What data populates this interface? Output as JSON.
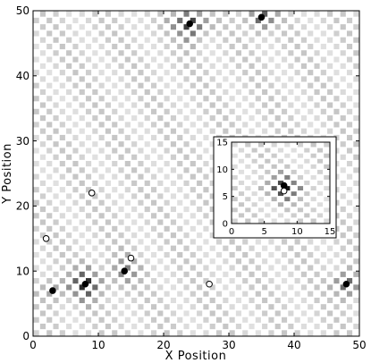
{
  "chart_data": [
    {
      "type": "heatmap",
      "title": "",
      "xlabel": "X Position",
      "ylabel": "Y Position",
      "xlim": [
        0,
        50
      ],
      "ylim": [
        0,
        50
      ],
      "xticks": [
        "0",
        "10",
        "20",
        "30",
        "40",
        "50"
      ],
      "yticks": [
        "0",
        "10",
        "20",
        "30",
        "40",
        "50"
      ],
      "colormap": "grayscale, darker = higher intensity",
      "grid": false,
      "description_level": "checkerboard intensity field with dark clusters around source points",
      "filled_points": [
        {
          "x": 8,
          "y": 8
        },
        {
          "x": 24,
          "y": 48
        },
        {
          "x": 35,
          "y": 49
        },
        {
          "x": 48,
          "y": 8
        },
        {
          "x": 14,
          "y": 10
        },
        {
          "x": 3,
          "y": 7
        }
      ],
      "open_points": [
        {
          "x": 9,
          "y": 22
        },
        {
          "x": 2,
          "y": 15
        },
        {
          "x": 15,
          "y": 12
        },
        {
          "x": 27,
          "y": 8
        }
      ],
      "hotspots": [
        {
          "x": 8,
          "y": 8,
          "strength": 1.0,
          "radius": 6
        },
        {
          "x": 24,
          "y": 48,
          "strength": 1.0,
          "radius": 6
        },
        {
          "x": 35,
          "y": 49,
          "strength": 0.8,
          "radius": 5
        },
        {
          "x": 48,
          "y": 8,
          "strength": 0.8,
          "radius": 5
        },
        {
          "x": 14,
          "y": 10,
          "strength": 0.45,
          "radius": 6
        },
        {
          "x": 3,
          "y": 7,
          "strength": 0.35,
          "radius": 5
        }
      ]
    },
    {
      "type": "heatmap",
      "title": "",
      "xlabel": "",
      "ylabel": "",
      "xlim": [
        0,
        15
      ],
      "ylim": [
        0,
        15
      ],
      "xticks": [
        "0",
        "5",
        "10",
        "15"
      ],
      "yticks": [
        "0",
        "5",
        "10",
        "15"
      ],
      "grid": false,
      "filled_points": [
        {
          "x": 8,
          "y": 7
        }
      ],
      "open_points": [
        {
          "x": 8,
          "y": 6
        }
      ],
      "hotspots": [
        {
          "x": 8,
          "y": 6.5,
          "strength": 1.0,
          "radius": 6
        }
      ]
    }
  ]
}
